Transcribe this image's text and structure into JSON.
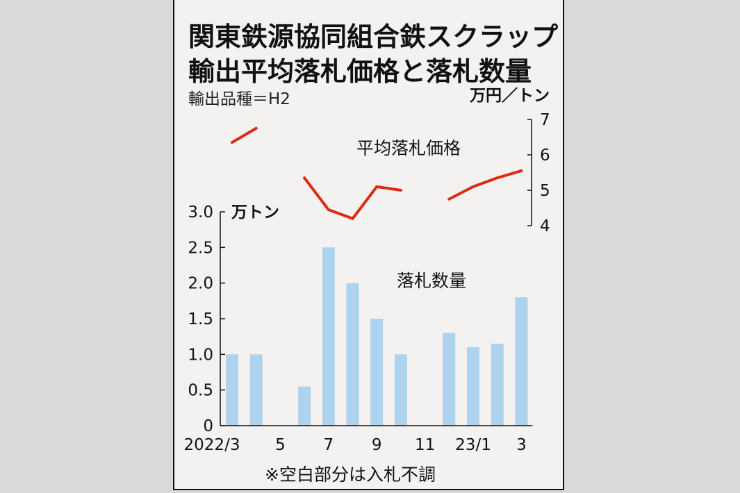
{
  "title_line1": "関東鉄源協同組合鉄スクラップ",
  "title_line2": "輸出平均落札価格と落札数量",
  "subtitle": "輸出品種＝H2",
  "footnote": "※空白部分は入札不調",
  "colors": {
    "bar": "#aed3ee",
    "line": "#dd2a12",
    "panel": "#f3f2f0"
  },
  "chart_data": {
    "type": "bar",
    "x_tick_labels": [
      "2022/3",
      "5",
      "7",
      "9",
      "11",
      "23/1",
      "3"
    ],
    "categories": [
      "2022/3",
      "2022/4",
      "2022/5",
      "2022/6",
      "2022/7",
      "2022/8",
      "2022/9",
      "2022/10",
      "2022/11",
      "2022/12",
      "2023/1",
      "2023/2",
      "2023/3"
    ],
    "series": [
      {
        "name": "落札数量",
        "type": "bar",
        "axis": "left",
        "values": [
          1.0,
          1.0,
          null,
          0.55,
          2.5,
          2.0,
          1.5,
          1.0,
          null,
          1.3,
          1.1,
          1.15,
          1.8
        ]
      },
      {
        "name": "平均落札価格",
        "type": "line",
        "axis": "right",
        "values": [
          6.35,
          6.75,
          null,
          5.35,
          4.45,
          4.2,
          5.1,
          5.0,
          null,
          4.75,
          5.1,
          5.35,
          5.55
        ]
      }
    ],
    "y_left": {
      "unit": "万トン",
      "ylim": [
        0,
        3.0
      ],
      "ticks": [
        "0",
        "0.5",
        "1.0",
        "1.5",
        "2.0",
        "2.5",
        "3.0"
      ]
    },
    "y_right": {
      "unit": "万円／トン",
      "ylim": [
        4,
        7
      ],
      "ticks": [
        "4",
        "5",
        "6",
        "7"
      ]
    },
    "grid": false
  }
}
